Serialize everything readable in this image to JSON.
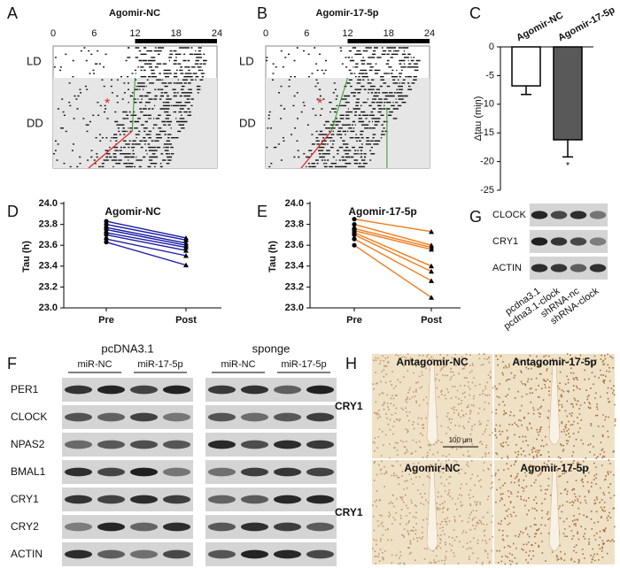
{
  "figure": {
    "panel_labels": [
      "A",
      "B",
      "C",
      "D",
      "E",
      "F",
      "G",
      "H"
    ]
  },
  "actograms": [
    {
      "title": "Agomir-NC",
      "hour_ticks": [
        0,
        6,
        12,
        18,
        24
      ],
      "phases": [
        "LD",
        "DD"
      ],
      "marker": "*"
    },
    {
      "title": "Agomir-17-5p",
      "hour_ticks": [
        0,
        6,
        12,
        18,
        24
      ],
      "phases": [
        "LD",
        "DD"
      ],
      "marker": "*"
    }
  ],
  "chart_data": [
    {
      "type": "bar",
      "categories": [
        "Agomir-NC",
        "Agomir-17-5p"
      ],
      "values": [
        -6.8,
        -16.2
      ],
      "errors": [
        1.5,
        3.0
      ],
      "colors": [
        "#ffffff",
        "#595959"
      ],
      "ylabel": "Δtau (min)",
      "ylim": [
        -25,
        0
      ],
      "yticks": [
        0,
        -5,
        -10,
        -15,
        -20,
        -25
      ],
      "annotation": "*"
    },
    {
      "type": "paired",
      "title": "Agomir-NC",
      "ylabel": "Tau (h)",
      "categories": [
        "Pre",
        "Post"
      ],
      "color": "#1a1aa6",
      "ylim": [
        23,
        24
      ],
      "yticks": [
        {
          "value": 23,
          "label": "23.0"
        },
        23.2,
        23.4,
        23.6,
        23.8,
        {
          "value": 24,
          "label": "24.0"
        }
      ],
      "series": [
        {
          "values": [
            23.83,
            23.67
          ]
        },
        {
          "values": [
            23.8,
            23.65
          ]
        },
        {
          "values": [
            23.77,
            23.62
          ]
        },
        {
          "values": [
            23.75,
            23.6
          ]
        },
        {
          "values": [
            23.72,
            23.58
          ]
        },
        {
          "values": [
            23.7,
            23.55
          ]
        },
        {
          "values": [
            23.66,
            23.5
          ]
        },
        {
          "values": [
            23.63,
            23.41
          ]
        }
      ]
    },
    {
      "type": "paired",
      "title": "Agomir-17-5p",
      "ylabel": "Tau (h)",
      "categories": [
        "Pre",
        "Post"
      ],
      "color": "#f07a1a",
      "ylim": [
        23,
        24
      ],
      "yticks": [
        {
          "value": 23,
          "label": "23.0"
        },
        23.2,
        23.4,
        23.6,
        23.8,
        {
          "value": 24,
          "label": "24.0"
        }
      ],
      "series": [
        {
          "values": [
            23.85,
            23.73
          ]
        },
        {
          "values": [
            23.8,
            23.6
          ]
        },
        {
          "values": [
            23.76,
            23.58
          ]
        },
        {
          "values": [
            23.74,
            23.56
          ]
        },
        {
          "values": [
            23.72,
            23.4
          ]
        },
        {
          "values": [
            23.7,
            23.35
          ]
        },
        {
          "values": [
            23.66,
            23.26
          ]
        },
        {
          "values": [
            23.6,
            23.1
          ]
        }
      ]
    }
  ],
  "blot_F": {
    "groups": [
      {
        "title": "pcDNA3.1",
        "conditions": [
          "miR-NC",
          "miR-17-5p"
        ]
      },
      {
        "title": "sponge",
        "conditions": [
          "miR-NC",
          "miR-17-5p"
        ]
      }
    ],
    "rows": [
      "PER1",
      "CLOCK",
      "NPAS2",
      "BMAL1",
      "CRY1",
      "CRY2",
      "ACTIN"
    ]
  },
  "blot_G": {
    "rows": [
      "CLOCK",
      "CRY1",
      "ACTIN"
    ],
    "lanes": [
      "pcdna3.1",
      "pcdna3.1-clock",
      "shRNA-nc",
      "shRNA-clock"
    ]
  },
  "histology": {
    "images": [
      {
        "label": "Antagomir-NC"
      },
      {
        "label": "Antagomir-17-5p"
      },
      {
        "label": "Agomir-NC"
      },
      {
        "label": "Agomir-17-5p"
      }
    ],
    "row_labels": [
      "CRY1",
      "CRY1"
    ],
    "scale_bar": "100 μm"
  }
}
